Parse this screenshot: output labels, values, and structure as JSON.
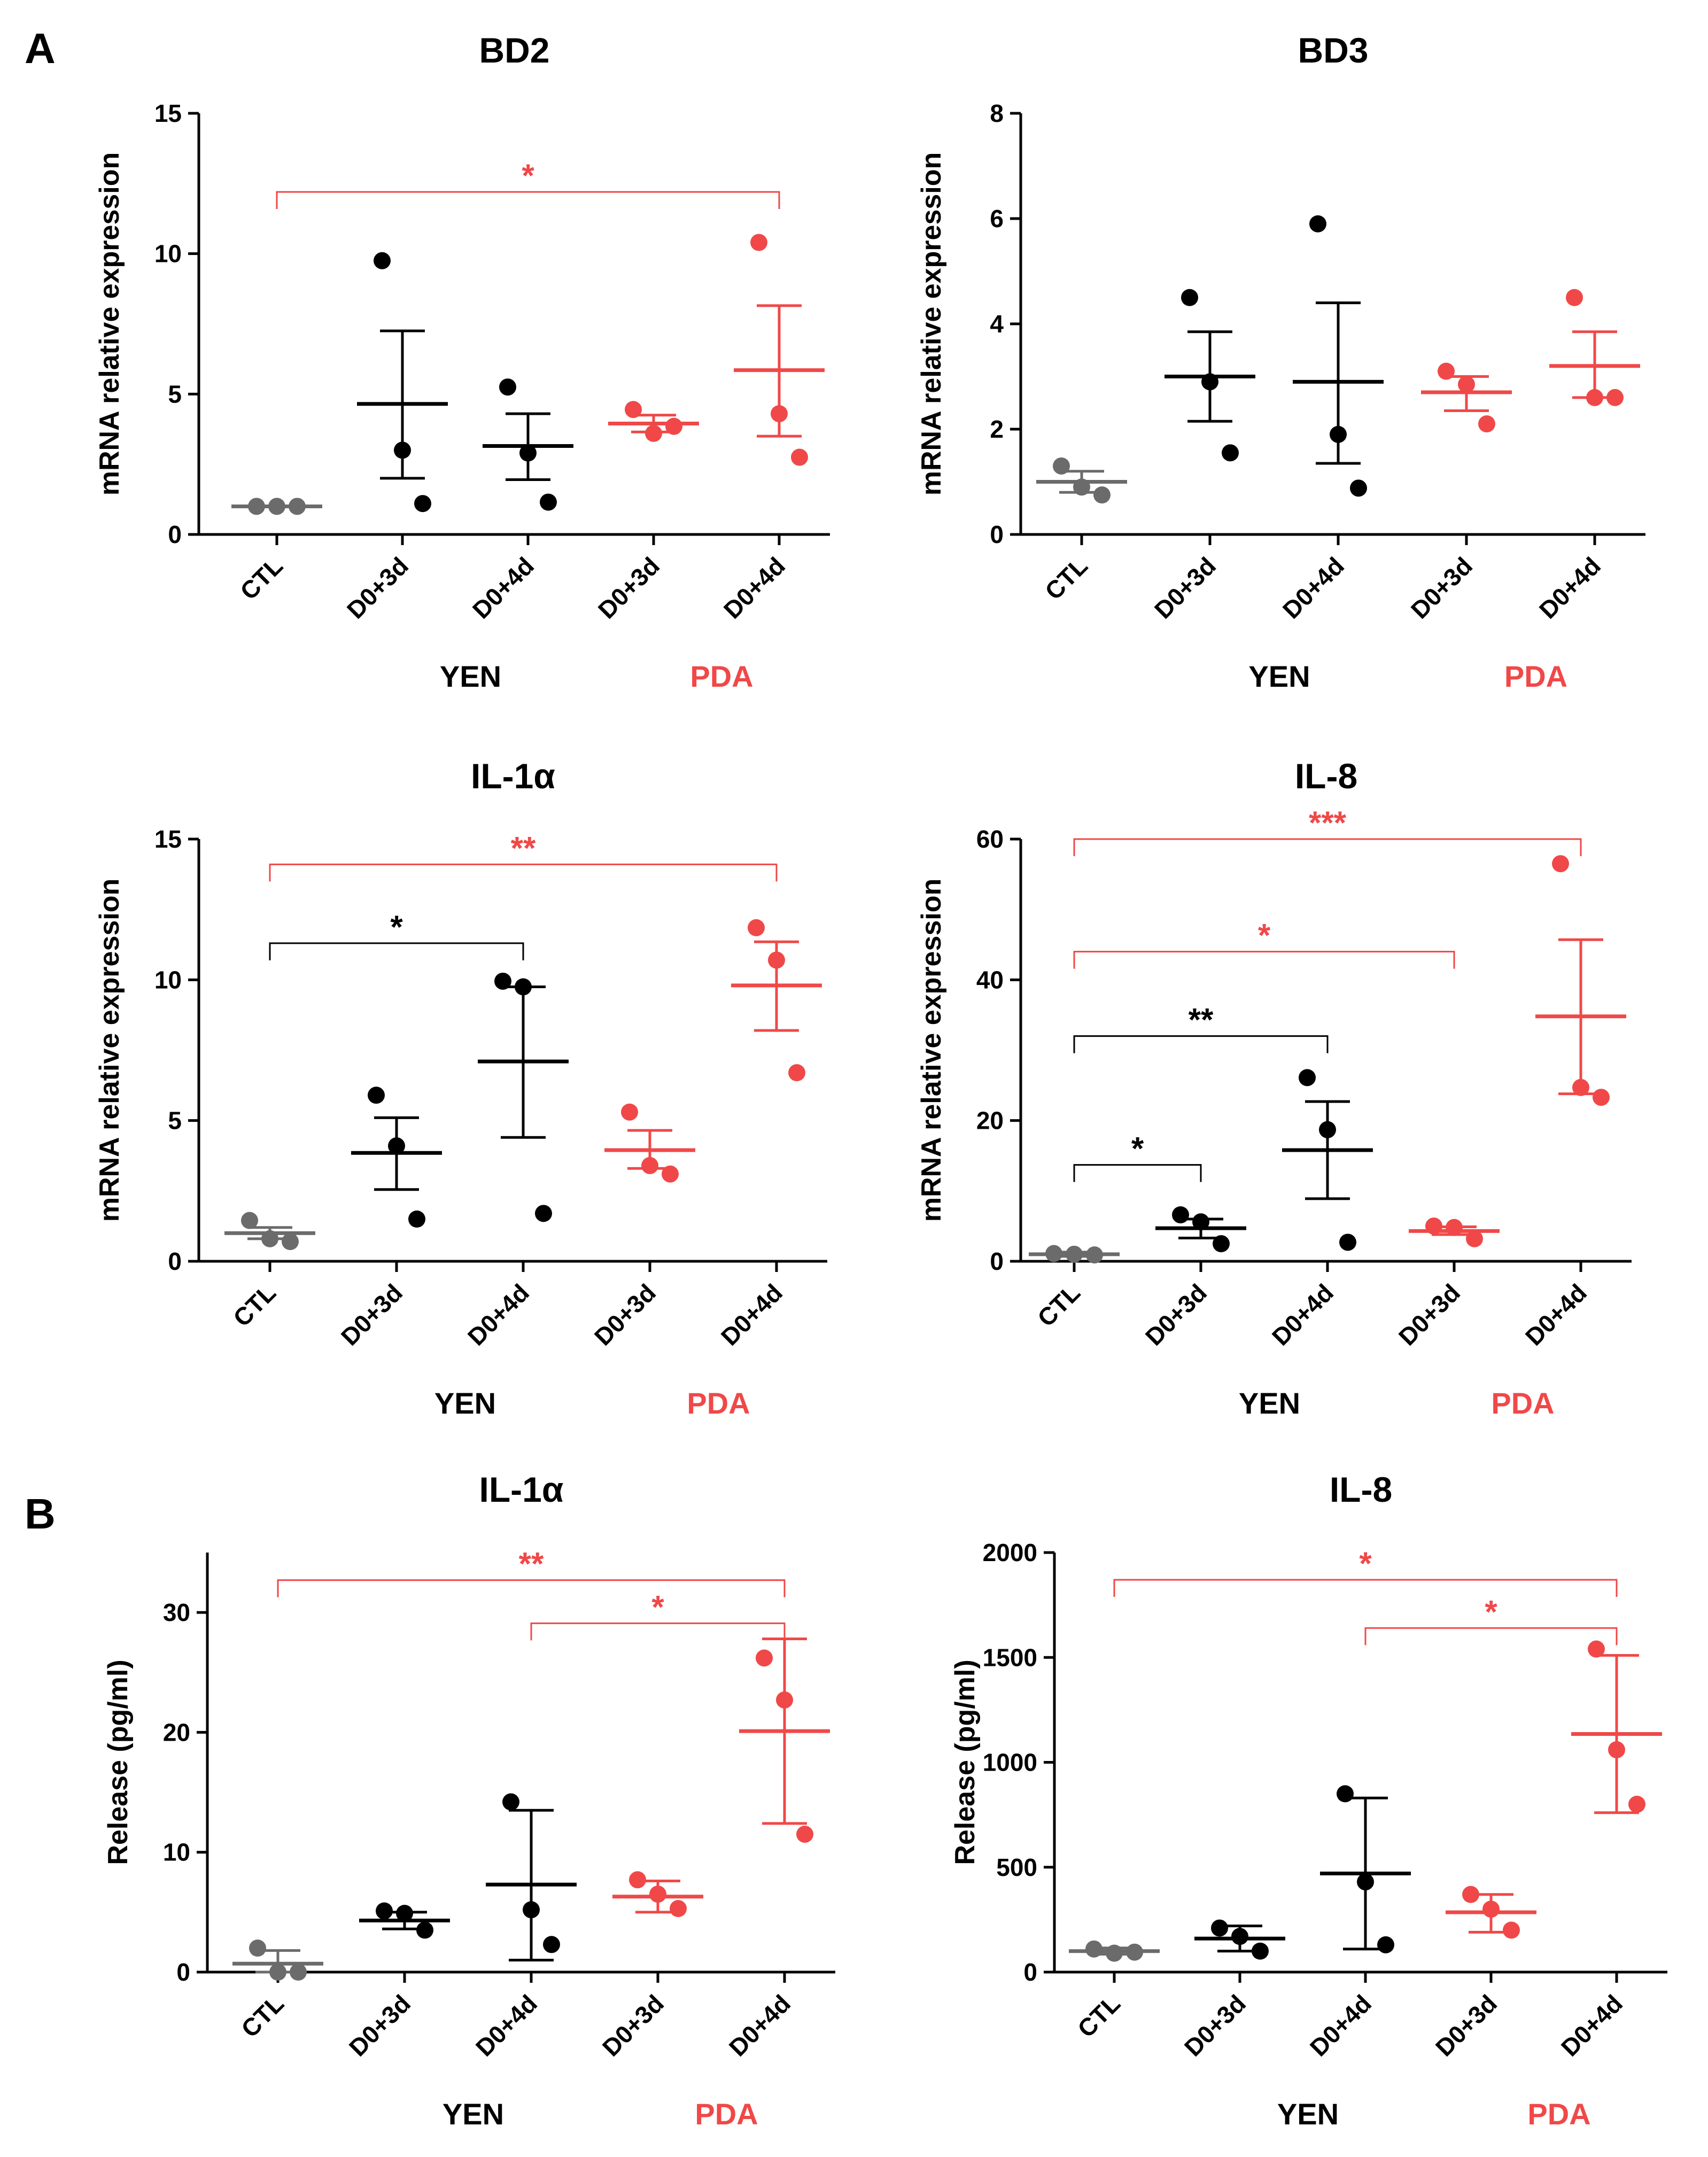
{
  "panel_labels": [
    "A",
    "B"
  ],
  "colors": {
    "ctl": "#6b6b6b",
    "yen": "#000000",
    "pda": "#f04848",
    "axis": "#000000"
  },
  "chart_data": [
    {
      "type": "scatter",
      "title": "BD2",
      "ylabel": "mRNA relative expression",
      "ylim": [
        0,
        15
      ],
      "yticks": [
        0,
        5,
        10,
        15
      ],
      "categories": [
        "CTL",
        "D0+3d",
        "D0+4d",
        "D0+3d",
        "D0+4d"
      ],
      "group_labels": [
        "YEN",
        "PDA"
      ],
      "groups": [
        {
          "category": "CTL",
          "treatment": "ctl",
          "points": [
            1.0,
            1.0,
            1.0
          ],
          "mean": 1.0,
          "sem": [
            1.0,
            1.0
          ]
        },
        {
          "category": "D0+3d",
          "treatment": "yen",
          "points": [
            9.75,
            3.0,
            1.1
          ],
          "mean": 4.65,
          "sem": [
            2.0,
            7.25
          ]
        },
        {
          "category": "D0+4d",
          "treatment": "yen",
          "points": [
            5.25,
            2.9,
            1.15
          ],
          "mean": 3.15,
          "sem": [
            1.95,
            4.3
          ]
        },
        {
          "category": "D0+3d",
          "treatment": "pda",
          "points": [
            4.45,
            3.6,
            3.85
          ],
          "mean": 3.95,
          "sem": [
            3.65,
            4.25
          ]
        },
        {
          "category": "D0+4d",
          "treatment": "pda",
          "points": [
            10.4,
            4.3,
            2.75
          ],
          "mean": 5.85,
          "sem": [
            3.5,
            8.15
          ]
        }
      ],
      "significance": [
        {
          "from": 0,
          "to": 4,
          "label": "*",
          "color": "pda",
          "y": 12.2
        }
      ]
    },
    {
      "type": "scatter",
      "title": "BD3",
      "ylabel": "mRNA relative expression",
      "ylim": [
        0,
        8
      ],
      "yticks": [
        0,
        2,
        4,
        6,
        8
      ],
      "categories": [
        "CTL",
        "D0+3d",
        "D0+4d",
        "D0+3d",
        "D0+4d"
      ],
      "group_labels": [
        "YEN",
        "PDA"
      ],
      "groups": [
        {
          "category": "CTL",
          "treatment": "ctl",
          "points": [
            1.3,
            0.9,
            0.75
          ],
          "mean": 1.0,
          "sem": [
            0.8,
            1.2
          ]
        },
        {
          "category": "D0+3d",
          "treatment": "yen",
          "points": [
            4.5,
            2.9,
            1.55
          ],
          "mean": 3.0,
          "sem": [
            2.15,
            3.85
          ]
        },
        {
          "category": "D0+4d",
          "treatment": "yen",
          "points": [
            5.9,
            1.9,
            0.88
          ],
          "mean": 2.9,
          "sem": [
            1.35,
            4.4
          ]
        },
        {
          "category": "D0+3d",
          "treatment": "pda",
          "points": [
            3.1,
            2.85,
            2.1
          ],
          "mean": 2.7,
          "sem": [
            2.35,
            3.0
          ]
        },
        {
          "category": "D0+4d",
          "treatment": "pda",
          "points": [
            4.5,
            2.6,
            2.6
          ],
          "mean": 3.2,
          "sem": [
            2.6,
            3.85
          ]
        }
      ],
      "significance": []
    },
    {
      "type": "scatter",
      "title": "IL-1α",
      "ylabel": "mRNA relative expression",
      "ylim": [
        0,
        15
      ],
      "yticks": [
        0,
        5,
        10,
        15
      ],
      "categories": [
        "CTL",
        "D0+3d",
        "D0+4d",
        "D0+3d",
        "D0+4d"
      ],
      "group_labels": [
        "YEN",
        "PDA"
      ],
      "groups": [
        {
          "category": "CTL",
          "treatment": "ctl",
          "points": [
            1.45,
            0.8,
            0.7
          ],
          "mean": 1.0,
          "sem": [
            0.8,
            1.2
          ]
        },
        {
          "category": "D0+3d",
          "treatment": "yen",
          "points": [
            5.9,
            4.1,
            1.5
          ],
          "mean": 3.85,
          "sem": [
            2.55,
            5.1
          ]
        },
        {
          "category": "D0+4d",
          "treatment": "yen",
          "points": [
            9.95,
            9.75,
            1.7
          ],
          "mean": 7.1,
          "sem": [
            4.4,
            9.75
          ]
        },
        {
          "category": "D0+3d",
          "treatment": "pda",
          "points": [
            5.3,
            3.4,
            3.1
          ],
          "mean": 3.95,
          "sem": [
            3.3,
            4.65
          ]
        },
        {
          "category": "D0+4d",
          "treatment": "pda",
          "points": [
            11.85,
            10.7,
            6.7
          ],
          "mean": 9.8,
          "sem": [
            8.2,
            11.35
          ]
        }
      ],
      "significance": [
        {
          "from": 0,
          "to": 2,
          "label": "*",
          "color": "yen",
          "y": 11.3
        },
        {
          "from": 0,
          "to": 4,
          "label": "**",
          "color": "pda",
          "y": 14.1
        }
      ]
    },
    {
      "type": "scatter",
      "title": "IL-8",
      "ylabel": "mRNA relative expression",
      "ylim": [
        0,
        60
      ],
      "yticks": [
        0,
        20,
        40,
        60
      ],
      "categories": [
        "CTL",
        "D0+3d",
        "D0+4d",
        "D0+3d",
        "D0+4d"
      ],
      "group_labels": [
        "YEN",
        "PDA"
      ],
      "groups": [
        {
          "category": "CTL",
          "treatment": "ctl",
          "points": [
            1.1,
            1.0,
            0.9
          ],
          "mean": 1.0,
          "sem": [
            0.7,
            1.3
          ]
        },
        {
          "category": "D0+3d",
          "treatment": "yen",
          "points": [
            6.6,
            5.6,
            2.5
          ],
          "mean": 4.7,
          "sem": [
            3.3,
            6.0
          ]
        },
        {
          "category": "D0+4d",
          "treatment": "yen",
          "points": [
            26.1,
            18.7,
            2.7
          ],
          "mean": 15.8,
          "sem": [
            8.9,
            22.7
          ]
        },
        {
          "category": "D0+3d",
          "treatment": "pda",
          "points": [
            5.0,
            4.8,
            3.2
          ],
          "mean": 4.3,
          "sem": [
            3.8,
            4.9
          ]
        },
        {
          "category": "D0+4d",
          "treatment": "pda",
          "points": [
            56.5,
            24.7,
            23.3
          ],
          "mean": 34.8,
          "sem": [
            23.8,
            45.7
          ]
        }
      ],
      "significance": [
        {
          "from": 0,
          "to": 1,
          "label": "*",
          "color": "yen",
          "y": 13.7
        },
        {
          "from": 0,
          "to": 2,
          "label": "**",
          "color": "yen",
          "y": 32.0
        },
        {
          "from": 0,
          "to": 3,
          "label": "*",
          "color": "pda",
          "y": 44.0
        },
        {
          "from": 0,
          "to": 4,
          "label": "***",
          "color": "pda",
          "y": 60.0
        }
      ]
    },
    {
      "type": "scatter",
      "title": "IL-1α",
      "ylabel": "Release (pg/ml)",
      "ylim": [
        0,
        35
      ],
      "yticks": [
        0,
        10,
        20,
        30
      ],
      "categories": [
        "CTL",
        "D0+3d",
        "D0+4d",
        "D0+3d",
        "D0+4d"
      ],
      "group_labels": [
        "YEN",
        "PDA"
      ],
      "groups": [
        {
          "category": "CTL",
          "treatment": "ctl",
          "points": [
            2.0,
            0.0,
            0.0
          ],
          "mean": 0.7,
          "sem": [
            0.0,
            1.8
          ]
        },
        {
          "category": "D0+3d",
          "treatment": "yen",
          "points": [
            5.1,
            4.9,
            3.5
          ],
          "mean": 4.3,
          "sem": [
            3.6,
            5.0
          ]
        },
        {
          "category": "D0+4d",
          "treatment": "yen",
          "points": [
            14.2,
            5.2,
            2.3
          ],
          "mean": 7.3,
          "sem": [
            1.0,
            13.5
          ]
        },
        {
          "category": "D0+3d",
          "treatment": "pda",
          "points": [
            7.7,
            6.5,
            5.3
          ],
          "mean": 6.3,
          "sem": [
            5.0,
            7.6
          ]
        },
        {
          "category": "D0+4d",
          "treatment": "pda",
          "points": [
            26.2,
            22.7,
            11.5
          ],
          "mean": 20.1,
          "sem": [
            12.4,
            27.8
          ]
        }
      ],
      "significance": [
        {
          "from": 0,
          "to": 4,
          "label": "**",
          "color": "pda",
          "y": 32.7
        },
        {
          "from": 2,
          "to": 4,
          "label": "*",
          "color": "pda",
          "y": 29.1
        }
      ]
    },
    {
      "type": "scatter",
      "title": "IL-8",
      "ylabel": "Release (pg/ml)",
      "ylim": [
        0,
        2000
      ],
      "yticks": [
        0,
        500,
        1000,
        1500,
        2000
      ],
      "categories": [
        "CTL",
        "D0+3d",
        "D0+4d",
        "D0+3d",
        "D0+4d"
      ],
      "group_labels": [
        "YEN",
        "PDA"
      ],
      "groups": [
        {
          "category": "CTL",
          "treatment": "ctl",
          "points": [
            110,
            90,
            95
          ],
          "mean": 100,
          "sem": [
            85,
            115
          ]
        },
        {
          "category": "D0+3d",
          "treatment": "yen",
          "points": [
            210,
            170,
            100
          ],
          "mean": 160,
          "sem": [
            100,
            220
          ]
        },
        {
          "category": "D0+4d",
          "treatment": "yen",
          "points": [
            850,
            430,
            130
          ],
          "mean": 470,
          "sem": [
            110,
            830
          ]
        },
        {
          "category": "D0+3d",
          "treatment": "pda",
          "points": [
            370,
            300,
            200
          ],
          "mean": 285,
          "sem": [
            190,
            370
          ]
        },
        {
          "category": "D0+4d",
          "treatment": "pda",
          "points": [
            1540,
            1060,
            800
          ],
          "mean": 1135,
          "sem": [
            760,
            1510
          ]
        }
      ],
      "significance": [
        {
          "from": 0,
          "to": 4,
          "label": "*",
          "color": "pda",
          "y": 1870
        },
        {
          "from": 2,
          "to": 4,
          "label": "*",
          "color": "pda",
          "y": 1640
        }
      ]
    }
  ]
}
